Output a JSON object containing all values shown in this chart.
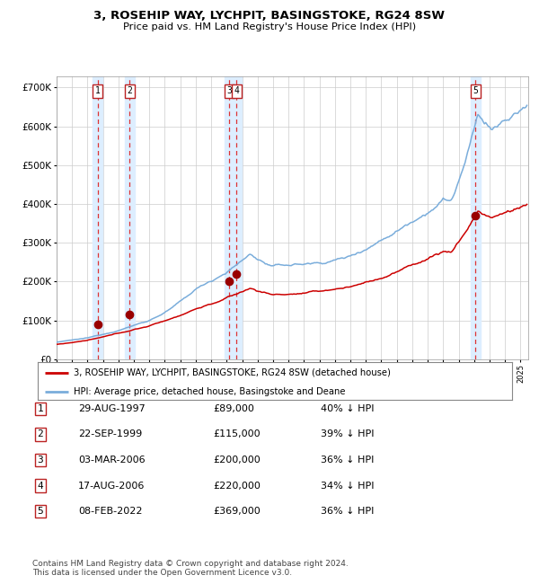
{
  "title1": "3, ROSEHIP WAY, LYCHPIT, BASINGSTOKE, RG24 8SW",
  "title2": "Price paid vs. HM Land Registry's House Price Index (HPI)",
  "xlim_start": 1995.0,
  "xlim_end": 2025.5,
  "ylim": [
    0,
    730000
  ],
  "yticks": [
    0,
    100000,
    200000,
    300000,
    400000,
    500000,
    600000,
    700000
  ],
  "ytick_labels": [
    "£0",
    "£100K",
    "£200K",
    "£300K",
    "£400K",
    "£500K",
    "£600K",
    "£700K"
  ],
  "sale_dates": [
    1997.66,
    1999.72,
    2006.17,
    2006.63,
    2022.1
  ],
  "sale_prices": [
    89000,
    115000,
    200000,
    220000,
    369000
  ],
  "sale_labels": [
    "1",
    "2",
    "3",
    "4",
    "5"
  ],
  "red_line_color": "#cc0000",
  "blue_line_color": "#7aaddb",
  "sale_marker_color": "#990000",
  "vline_color": "#dd3333",
  "vband_color": "#ddeeff",
  "grid_color": "#cccccc",
  "legend_entries": [
    "3, ROSEHIP WAY, LYCHPIT, BASINGSTOKE, RG24 8SW (detached house)",
    "HPI: Average price, detached house, Basingstoke and Deane"
  ],
  "table_data": [
    [
      "1",
      "29-AUG-1997",
      "£89,000",
      "40% ↓ HPI"
    ],
    [
      "2",
      "22-SEP-1999",
      "£115,000",
      "39% ↓ HPI"
    ],
    [
      "3",
      "03-MAR-2006",
      "£200,000",
      "36% ↓ HPI"
    ],
    [
      "4",
      "17-AUG-2006",
      "£220,000",
      "34% ↓ HPI"
    ],
    [
      "5",
      "08-FEB-2022",
      "£369,000",
      "36% ↓ HPI"
    ]
  ],
  "footnote1": "Contains HM Land Registry data © Crown copyright and database right 2024.",
  "footnote2": "This data is licensed under the Open Government Licence v3.0."
}
